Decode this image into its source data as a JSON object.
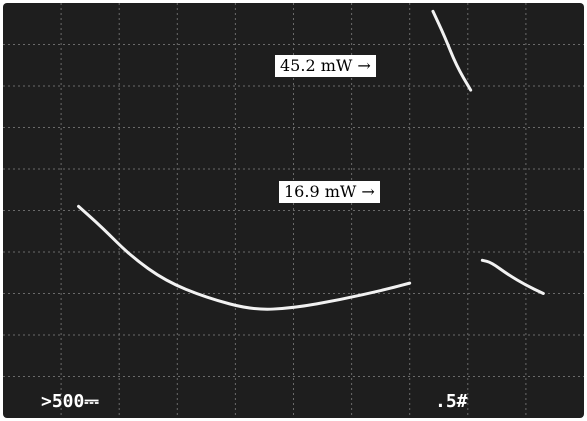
{
  "chart_data": {
    "type": "line",
    "title": "",
    "grid": true,
    "background_color": "#1e1e1e",
    "trace_color": "#f2f2f2",
    "grid_color": "#6a6a6a",
    "annotations": [
      {
        "text": "45.2 mW →",
        "points_to": "upper trace segment peak"
      },
      {
        "text": "16.9 mW →",
        "points_to": "upper trace segment end"
      }
    ],
    "readouts": {
      "left": ">500⎓",
      "right": ".5#"
    },
    "series": [
      {
        "values_div": [
          [
            1.3,
            5.1
          ],
          [
            1.7,
            4.6
          ],
          [
            2.2,
            3.9
          ],
          [
            2.8,
            3.3
          ],
          [
            3.5,
            2.9
          ],
          [
            4.3,
            2.6
          ],
          [
            5.0,
            2.65
          ],
          [
            5.8,
            2.85
          ],
          [
            6.6,
            3.1
          ],
          [
            7.0,
            3.25
          ]
        ]
      },
      {
        "values_div": [
          [
            7.4,
            9.8
          ],
          [
            7.6,
            9.2
          ],
          [
            7.8,
            8.5
          ],
          [
            8.05,
            7.9
          ]
        ]
      },
      {
        "values_div": [
          [
            8.25,
            3.8
          ],
          [
            8.4,
            3.75
          ],
          [
            8.7,
            3.45
          ],
          [
            9.0,
            3.2
          ],
          [
            9.3,
            3.0
          ]
        ]
      }
    ]
  }
}
